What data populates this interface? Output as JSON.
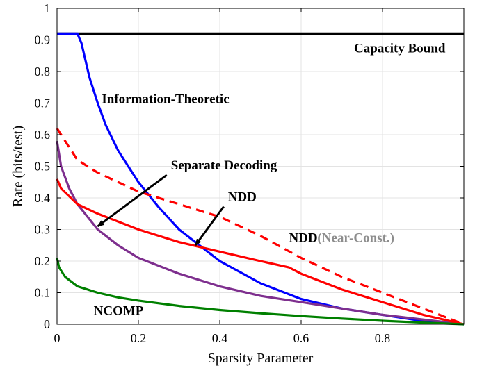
{
  "chart_data": {
    "type": "line",
    "title": "",
    "xlabel": "Sparsity Parameter",
    "ylabel": "Rate (bits/test)",
    "xlim": [
      0,
      1
    ],
    "ylim": [
      0,
      1
    ],
    "grid": true,
    "x_ticks": [
      0,
      0.2,
      0.4,
      0.6,
      0.8
    ],
    "x_tick_labels": [
      "0",
      "0.2",
      "0.4",
      "0.6",
      "0.8"
    ],
    "y_ticks": [
      0,
      0.1,
      0.2,
      0.3,
      0.4,
      0.5,
      0.6,
      0.7,
      0.8,
      0.9,
      1
    ],
    "y_tick_labels": [
      "0",
      "0.1",
      "0.2",
      "0.3",
      "0.4",
      "0.5",
      "0.6",
      "0.7",
      "0.8",
      "0.9",
      "1"
    ],
    "series": [
      {
        "name": "Capacity Bound",
        "color": "#000000",
        "style": "solid",
        "x": [
          0,
          1
        ],
        "y": [
          0.92,
          0.92
        ]
      },
      {
        "name": "Information-Theoretic",
        "color": "#0000ff",
        "style": "solid",
        "x": [
          0,
          0.05,
          0.06,
          0.08,
          0.1,
          0.12,
          0.15,
          0.2,
          0.25,
          0.3,
          0.35,
          0.4,
          0.5,
          0.6,
          0.7,
          0.8,
          0.9,
          1.0
        ],
        "y": [
          0.92,
          0.92,
          0.89,
          0.78,
          0.7,
          0.63,
          0.55,
          0.45,
          0.37,
          0.3,
          0.25,
          0.2,
          0.13,
          0.08,
          0.05,
          0.03,
          0.01,
          0
        ]
      },
      {
        "name": "Separate Decoding",
        "color": "#7e2f8e",
        "style": "solid",
        "x": [
          0,
          0.01,
          0.03,
          0.05,
          0.1,
          0.15,
          0.2,
          0.3,
          0.4,
          0.5,
          0.6,
          0.7,
          0.8,
          0.9,
          1.0
        ],
        "y": [
          0.58,
          0.5,
          0.43,
          0.38,
          0.3,
          0.25,
          0.21,
          0.16,
          0.12,
          0.09,
          0.07,
          0.05,
          0.03,
          0.015,
          0
        ]
      },
      {
        "name": "NDD",
        "color": "#ff0000",
        "style": "solid",
        "x": [
          0,
          0.01,
          0.05,
          0.1,
          0.2,
          0.3,
          0.4,
          0.5,
          0.57,
          0.6,
          0.7,
          0.8,
          0.9,
          1.0
        ],
        "y": [
          0.46,
          0.43,
          0.38,
          0.35,
          0.3,
          0.26,
          0.23,
          0.2,
          0.18,
          0.16,
          0.11,
          0.07,
          0.03,
          0
        ]
      },
      {
        "name": "NDD (Near-Const.)",
        "color": "#ff0000",
        "style": "dashed",
        "x": [
          0,
          0.05,
          0.1,
          0.2,
          0.3,
          0.4,
          0.5,
          0.6,
          0.7,
          0.8,
          0.9,
          1.0
        ],
        "y": [
          0.62,
          0.52,
          0.48,
          0.42,
          0.38,
          0.34,
          0.28,
          0.21,
          0.15,
          0.1,
          0.05,
          0
        ]
      },
      {
        "name": "NCOMP",
        "color": "#008000",
        "style": "solid",
        "x": [
          0,
          0.005,
          0.02,
          0.05,
          0.1,
          0.15,
          0.2,
          0.3,
          0.4,
          0.5,
          0.6,
          0.7,
          0.8,
          0.9,
          1.0
        ],
        "y": [
          0.21,
          0.18,
          0.15,
          0.12,
          0.1,
          0.085,
          0.075,
          0.058,
          0.045,
          0.035,
          0.026,
          0.018,
          0.011,
          0.005,
          0
        ]
      }
    ],
    "annotations": [
      {
        "text": "Capacity Bound",
        "x": 0.73,
        "y": 0.86
      },
      {
        "text": "Information-Theoretic",
        "x": 0.11,
        "y": 0.7
      },
      {
        "text": "Separate Decoding",
        "x": 0.28,
        "y": 0.49,
        "arrow_to": [
          0.1,
          0.31
        ]
      },
      {
        "text": "NDD",
        "x": 0.42,
        "y": 0.39,
        "arrow_to": [
          0.34,
          0.25
        ]
      },
      {
        "text": "NDD",
        "x": 0.57,
        "y": 0.26
      },
      {
        "text": "(Near-Const.)",
        "x": 0.64,
        "y": 0.26
      },
      {
        "text": "NCOMP",
        "x": 0.09,
        "y": 0.03
      }
    ]
  }
}
